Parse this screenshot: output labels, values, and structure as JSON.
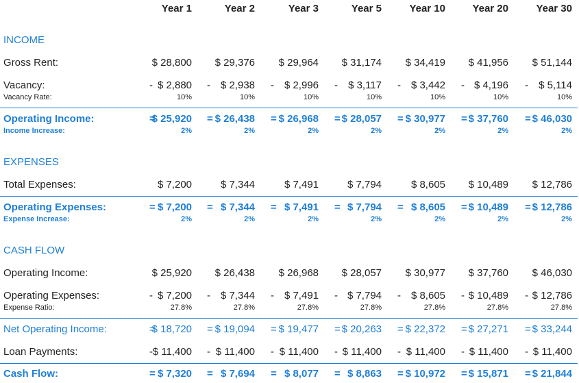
{
  "headers": [
    "Year 1",
    "Year 2",
    "Year 3",
    "Year 5",
    "Year 10",
    "Year 20",
    "Year 30"
  ],
  "income": {
    "title": "INCOME",
    "gross_rent": {
      "label": "Gross Rent:",
      "values": [
        "$ 28,800",
        "$ 29,376",
        "$ 29,964",
        "$ 31,174",
        "$ 34,419",
        "$ 41,956",
        "$ 51,144"
      ]
    },
    "vacancy": {
      "label": "Vacancy:",
      "sign": "-",
      "values": [
        "$ 2,880",
        "$ 2,938",
        "$ 2,996",
        "$ 3,117",
        "$ 3,442",
        "$ 4,196",
        "$ 5,114"
      ]
    },
    "vacancy_rate": {
      "label": "Vacancy Rate:",
      "values": [
        "10%",
        "10%",
        "10%",
        "10%",
        "10%",
        "10%",
        "10%"
      ]
    },
    "operating_income": {
      "label": "Operating Income:",
      "sign": "=",
      "values": [
        "$ 25,920",
        "$ 26,438",
        "$ 26,968",
        "$ 28,057",
        "$ 30,977",
        "$ 37,760",
        "$ 46,030"
      ]
    },
    "income_increase": {
      "label": "Income Increase:",
      "values": [
        "2%",
        "2%",
        "2%",
        "2%",
        "2%",
        "2%",
        "2%"
      ]
    }
  },
  "expenses": {
    "title": "EXPENSES",
    "total_expenses": {
      "label": "Total Expenses:",
      "values": [
        "$ 7,200",
        "$ 7,344",
        "$ 7,491",
        "$ 7,794",
        "$ 8,605",
        "$ 10,489",
        "$ 12,786"
      ]
    },
    "operating_expenses": {
      "label": "Operating Expenses:",
      "sign": "=",
      "values": [
        "$ 7,200",
        "$ 7,344",
        "$ 7,491",
        "$ 7,794",
        "$ 8,605",
        "$ 10,489",
        "$ 12,786"
      ]
    },
    "expense_increase": {
      "label": "Expense Increase:",
      "values": [
        "2%",
        "2%",
        "2%",
        "2%",
        "2%",
        "2%",
        "2%"
      ]
    }
  },
  "cash_flow": {
    "title": "CASH FLOW",
    "operating_income": {
      "label": "Operating Income:",
      "values": [
        "$ 25,920",
        "$ 26,438",
        "$ 26,968",
        "$ 28,057",
        "$ 30,977",
        "$ 37,760",
        "$ 46,030"
      ]
    },
    "operating_expenses": {
      "label": "Operating Expenses:",
      "sign": "-",
      "values": [
        "$ 7,200",
        "$ 7,344",
        "$ 7,491",
        "$ 7,794",
        "$ 8,605",
        "$ 10,489",
        "$ 12,786"
      ]
    },
    "expense_ratio": {
      "label": "Expense Ratio:",
      "values": [
        "27.8%",
        "27.8%",
        "27.8%",
        "27.8%",
        "27.8%",
        "27.8%",
        "27.8%"
      ]
    },
    "net_operating_income": {
      "label": "Net Operating Income:",
      "sign": "=",
      "values": [
        "$ 18,720",
        "$ 19,094",
        "$ 19,477",
        "$ 20,263",
        "$ 22,372",
        "$ 27,271",
        "$ 33,244"
      ]
    },
    "loan_payments": {
      "label": "Loan Payments:",
      "sign": "-",
      "values": [
        "$ 11,400",
        "$ 11,400",
        "$ 11,400",
        "$ 11,400",
        "$ 11,400",
        "$ 11,400",
        "$ 11,400"
      ]
    },
    "cash_flow": {
      "label": "Cash Flow:",
      "sign": "=",
      "values": [
        "$ 7,320",
        "$ 7,694",
        "$ 8,077",
        "$ 8,863",
        "$ 10,972",
        "$ 15,871",
        "$ 21,844"
      ]
    }
  },
  "colors": {
    "accent": "#1f7fd6",
    "text": "#222222"
  }
}
